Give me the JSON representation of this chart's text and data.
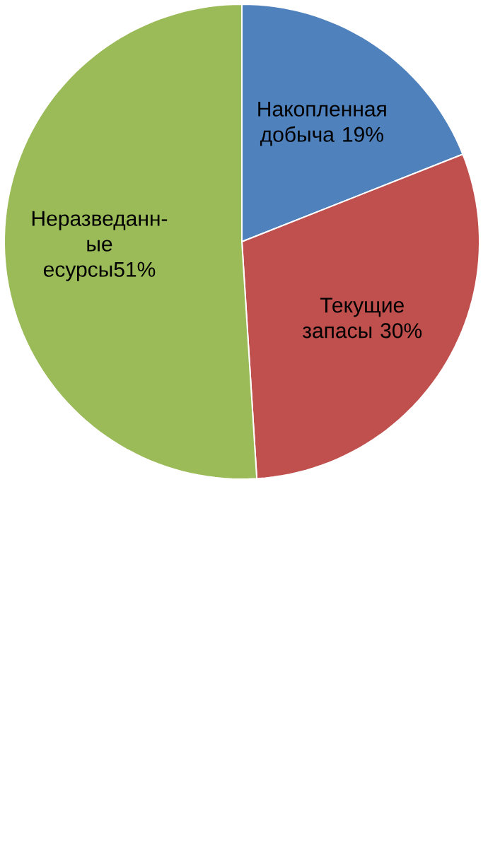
{
  "chart_data": {
    "type": "pie",
    "categories": [
      "Накопленная добыча 19%",
      "Текущие запасы 30%",
      "Неразведанн-ые есурсы51%"
    ],
    "values": [
      19,
      30,
      51
    ],
    "colors": [
      "#4f81bd",
      "#c0504d",
      "#9bbb59"
    ]
  }
}
